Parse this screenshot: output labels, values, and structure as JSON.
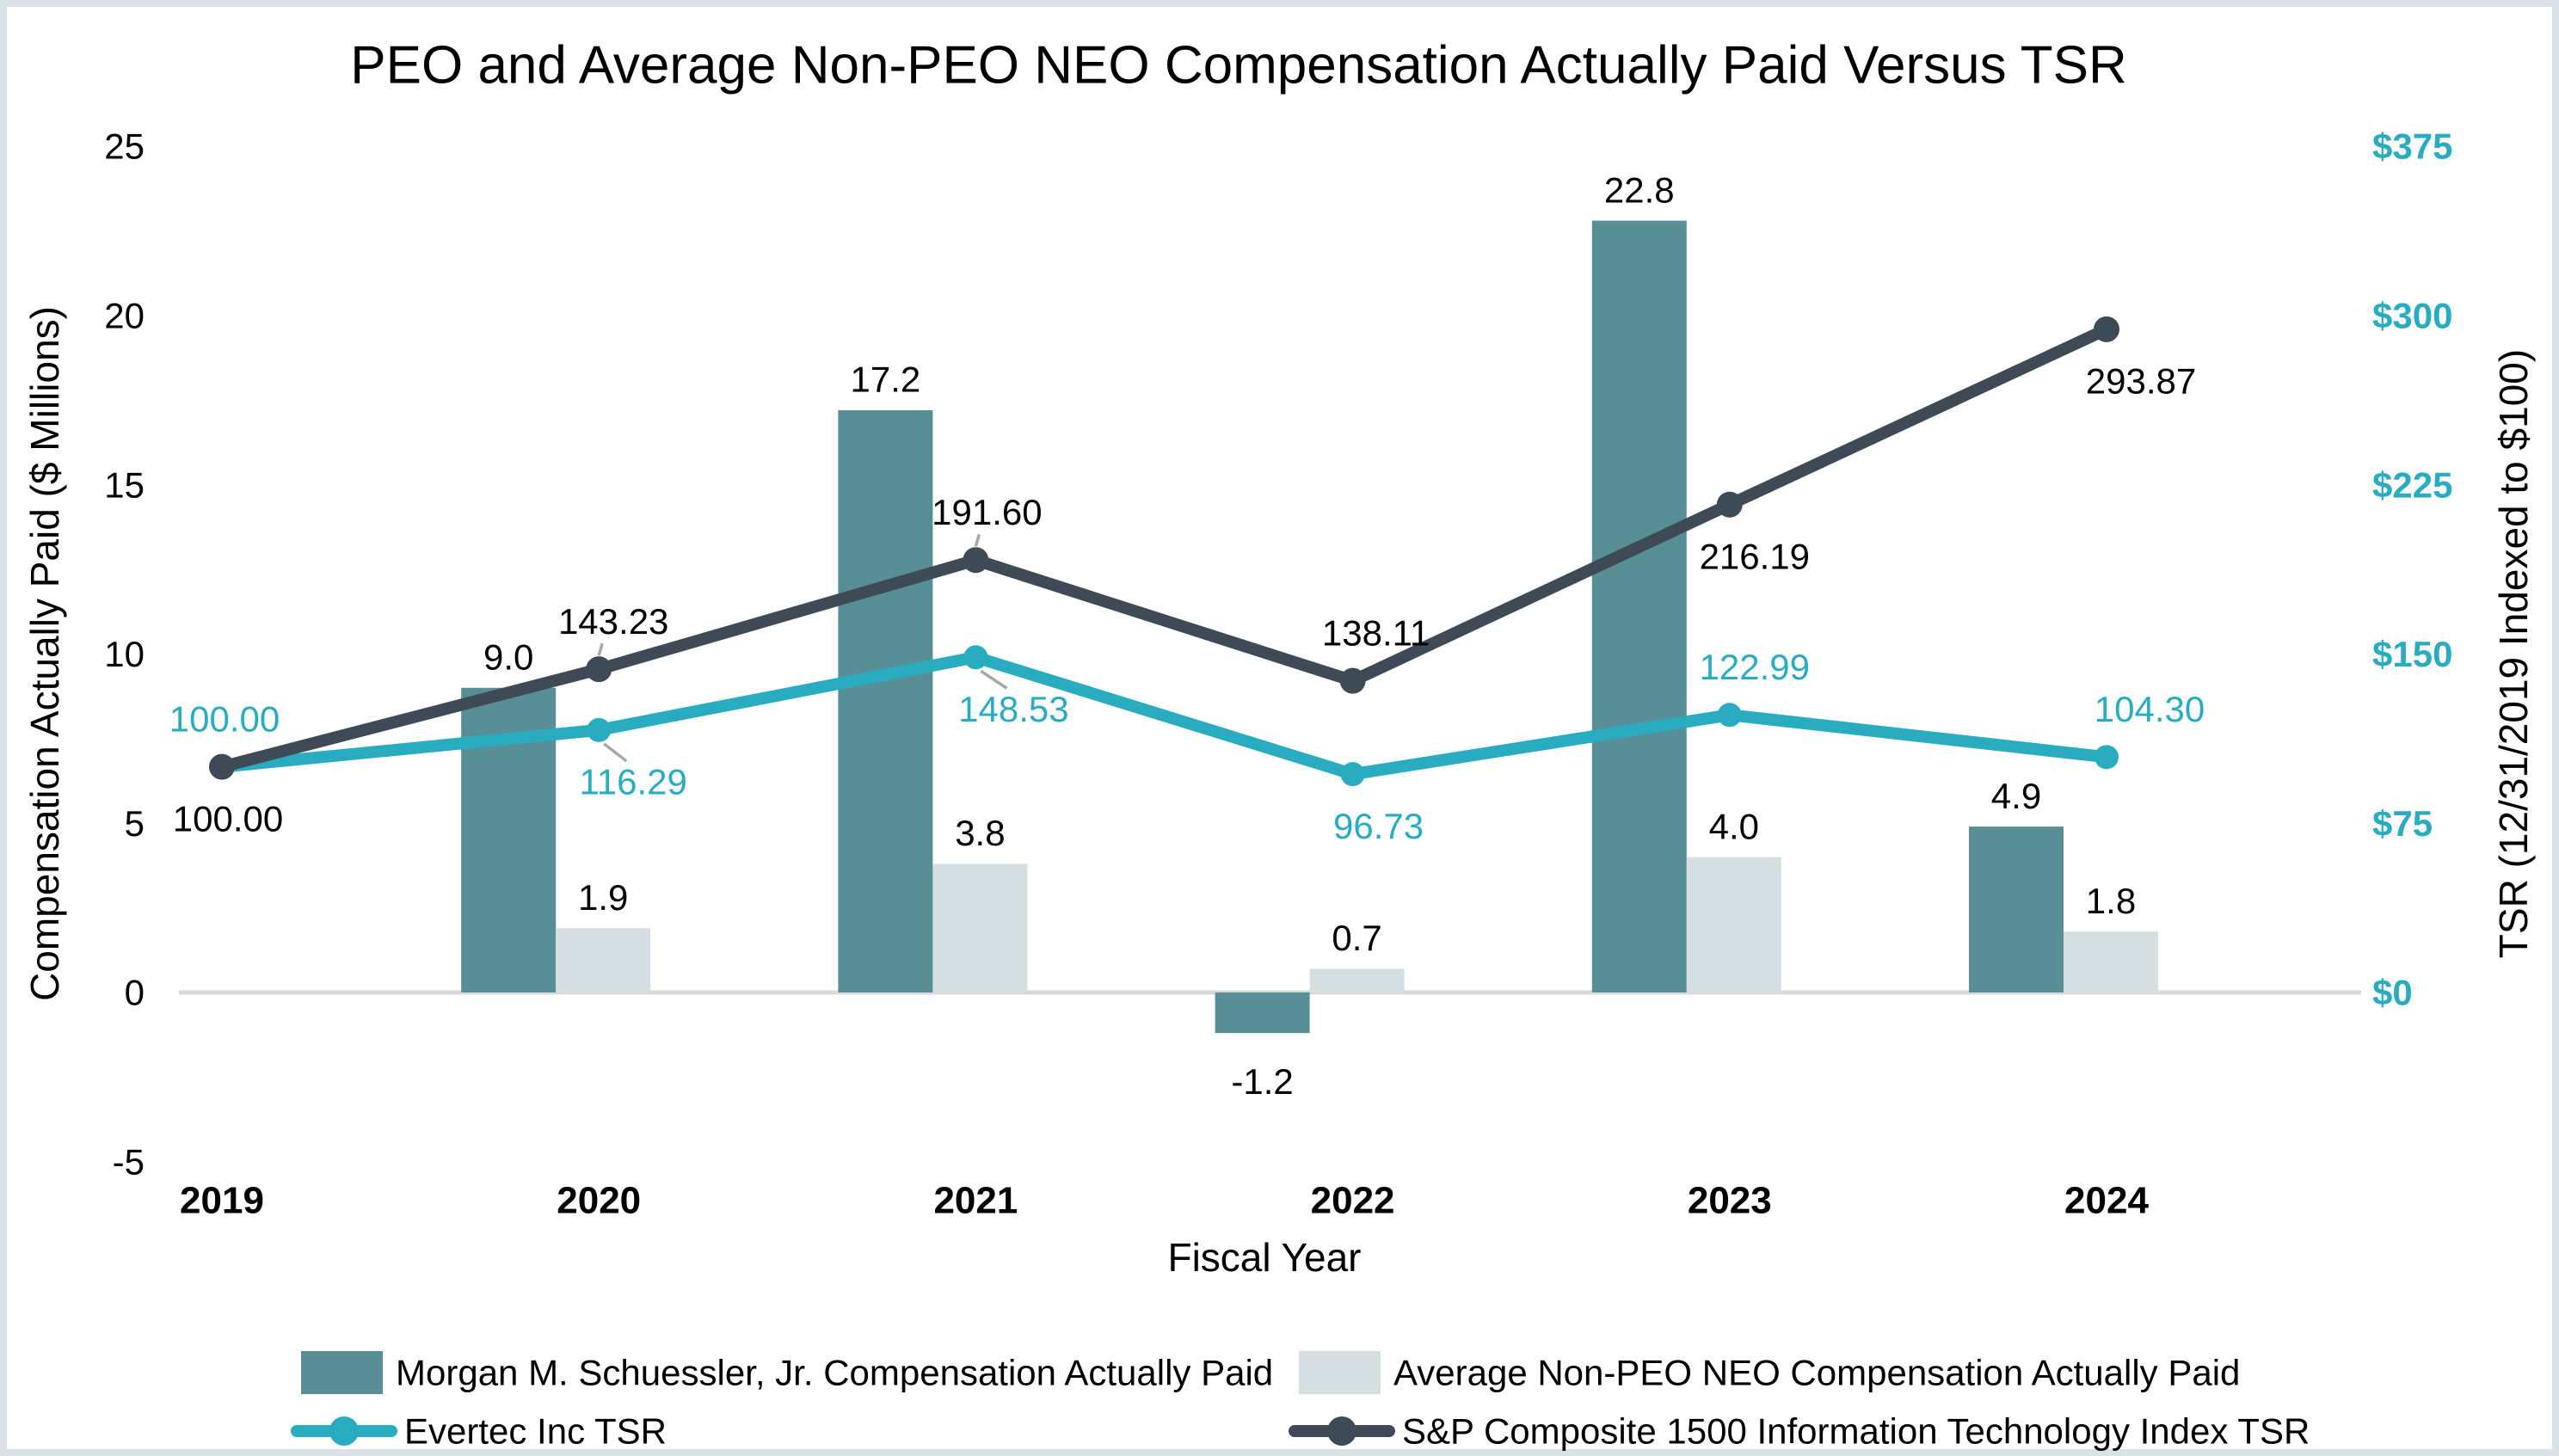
{
  "window": {
    "border_color": "#d9e2e6",
    "background": "#ffffff"
  },
  "chart_data": {
    "type": "combo-bar-line",
    "title": "PEO and Average Non-PEO NEO Compensation Actually Paid Versus TSR",
    "x_axis": {
      "title": "Fiscal Year",
      "categories": [
        "2019",
        "2020",
        "2021",
        "2022",
        "2023",
        "2024"
      ]
    },
    "y_axis_left": {
      "title": "Compensation Actually Paid ($ Millions)",
      "min": -5,
      "max": 25,
      "tick_values": [
        25,
        20,
        15,
        10,
        5,
        0,
        -5
      ],
      "tick_labels": [
        "25",
        "20",
        "15",
        "10",
        "5",
        "0",
        "-5"
      ],
      "text_color": "#000000"
    },
    "y_axis_right": {
      "title": "TSR (12/31/2019 Indexed to $100)",
      "min": 0,
      "max": 375,
      "tick_values": [
        375,
        300,
        225,
        150,
        75,
        0
      ],
      "tick_labels": [
        "$375",
        "$300",
        "$225",
        "$150",
        "$75",
        "$0"
      ],
      "text_color": "#2aacc0"
    },
    "grid": "none",
    "legend_position": "bottom",
    "axis_line_color": "#d9d9d9",
    "leader_line_color": "#a8a8a8",
    "series": [
      {
        "id": "peo",
        "name": "Morgan M. Schuessler, Jr. Compensation Actually Paid",
        "type": "bar",
        "axis": "left",
        "color": "#588f97",
        "label_color": "#000000",
        "values": [
          null,
          9.0,
          17.2,
          -1.2,
          22.8,
          4.9
        ],
        "labels": [
          "",
          "9.0",
          "17.2",
          "-1.2",
          "22.8",
          "4.9"
        ]
      },
      {
        "id": "neo",
        "name": "Average Non-PEO NEO Compensation Actually Paid",
        "type": "bar",
        "axis": "left",
        "color": "#d5dfe2",
        "label_color": "#000000",
        "values": [
          null,
          1.9,
          3.8,
          0.7,
          4.0,
          1.8
        ],
        "labels": [
          "",
          "1.9",
          "3.8",
          "0.7",
          "4.0",
          "1.8"
        ]
      },
      {
        "id": "evertec",
        "name": "Evertec Inc TSR",
        "type": "line",
        "axis": "right",
        "color": "#2aacc0",
        "label_color": "#2aacc0",
        "values": [
          100.0,
          116.29,
          148.53,
          96.73,
          122.99,
          104.3
        ],
        "labels": [
          "100.00",
          "116.29",
          "148.53",
          "96.73",
          "122.99",
          "104.30"
        ],
        "label_positions": [
          "above",
          "below",
          "below",
          "below",
          "above",
          "above"
        ],
        "label_dx": [
          3,
          40,
          44,
          30,
          29,
          50
        ],
        "leaders": [
          false,
          true,
          true,
          false,
          false,
          false
        ]
      },
      {
        "id": "sp1500it",
        "name": "S&P Composite 1500 Information Technology Index TSR",
        "type": "line",
        "axis": "right",
        "color": "#3e4a56",
        "label_color": "#000000",
        "values": [
          100.0,
          143.23,
          191.6,
          138.11,
          216.19,
          293.87
        ],
        "labels": [
          "100.00",
          "143.23",
          "191.60",
          "138.11",
          "216.19",
          "293.87"
        ],
        "label_positions": [
          "below",
          "above",
          "above",
          "above",
          "below",
          "below"
        ],
        "label_dx": [
          7,
          17,
          13,
          27,
          29,
          40
        ],
        "leaders": [
          false,
          true,
          true,
          false,
          false,
          false
        ]
      }
    ]
  }
}
